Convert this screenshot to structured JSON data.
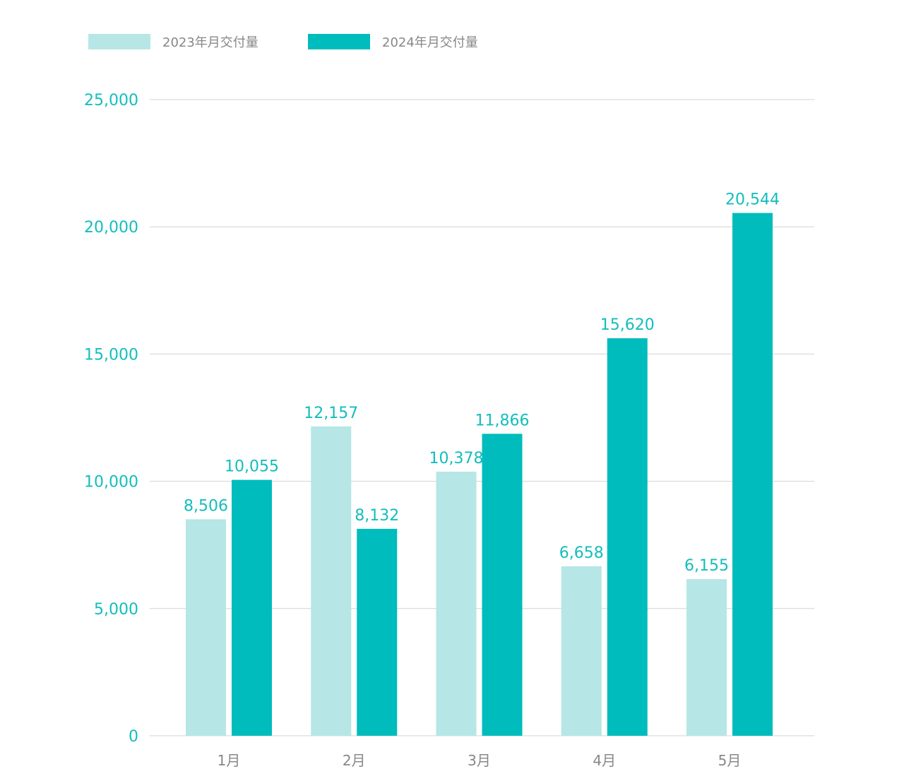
{
  "chart_data": {
    "type": "bar",
    "categories": [
      "1月",
      "2月",
      "3月",
      "4月",
      "5月"
    ],
    "series": [
      {
        "name": "2023年月交付量",
        "values": [
          8506,
          12157,
          10378,
          6658,
          6155
        ],
        "color": "#b6e6e6"
      },
      {
        "name": "2024年月交付量",
        "values": [
          10055,
          8132,
          11866,
          15620,
          20544
        ],
        "color": "#00bcbc"
      }
    ],
    "value_labels": [
      [
        "8,506",
        "12,157",
        "10,378",
        "6,658",
        "6,155"
      ],
      [
        "10,055",
        "8,132",
        "11,866",
        "15,620",
        "20,544"
      ]
    ],
    "y_ticks": [
      {
        "value": 0,
        "label": "0"
      },
      {
        "value": 5000,
        "label": "5,000"
      },
      {
        "value": 10000,
        "label": "10,000"
      },
      {
        "value": 15000,
        "label": "15,000"
      },
      {
        "value": 20000,
        "label": "20,000"
      },
      {
        "value": 25000,
        "label": "25,000"
      }
    ],
    "ylim": [
      0,
      25000
    ],
    "grid": true,
    "legend_position": "top-left",
    "axis_color": "#14bdbd",
    "label_color": "#14bdbd"
  }
}
